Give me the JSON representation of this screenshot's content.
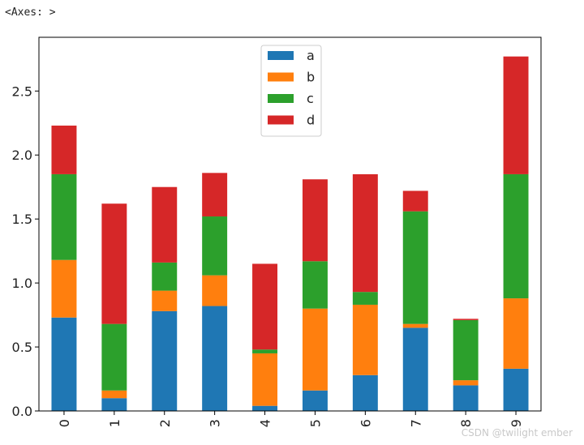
{
  "output_label": "<Axes: >",
  "watermark": "CSDN @twilight ember",
  "chart_data": {
    "type": "bar",
    "stacked": true,
    "categories": [
      "0",
      "1",
      "2",
      "3",
      "4",
      "5",
      "6",
      "7",
      "8",
      "9"
    ],
    "series": [
      {
        "name": "a",
        "color": "#1f77b4",
        "values": [
          0.73,
          0.1,
          0.78,
          0.82,
          0.04,
          0.16,
          0.28,
          0.65,
          0.2,
          0.33
        ]
      },
      {
        "name": "b",
        "color": "#ff7f0e",
        "values": [
          0.45,
          0.06,
          0.16,
          0.24,
          0.41,
          0.64,
          0.55,
          0.03,
          0.04,
          0.55
        ]
      },
      {
        "name": "c",
        "color": "#2ca02c",
        "values": [
          0.67,
          0.52,
          0.22,
          0.46,
          0.03,
          0.37,
          0.1,
          0.88,
          0.47,
          0.97
        ]
      },
      {
        "name": "d",
        "color": "#d62728",
        "values": [
          0.38,
          0.94,
          0.59,
          0.34,
          0.67,
          0.64,
          0.92,
          0.16,
          0.01,
          0.92
        ]
      }
    ],
    "yticks": [
      "0.0",
      "0.5",
      "1.0",
      "1.5",
      "2.0",
      "2.5"
    ],
    "ytick_values": [
      0,
      0.5,
      1.0,
      1.5,
      2.0,
      2.5
    ],
    "ylim": [
      0,
      2.92
    ],
    "legend_position": "top-center",
    "title": "",
    "xlabel": "",
    "ylabel": ""
  }
}
